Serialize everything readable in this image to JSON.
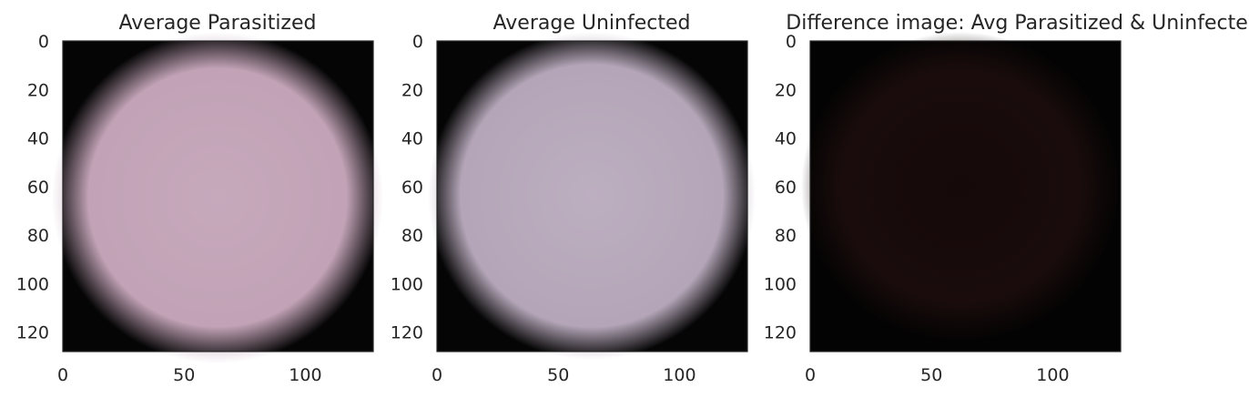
{
  "figure": {
    "panels": [
      {
        "title": "Average Parasitized",
        "image": "average-parasitized-cell",
        "colors": {
          "background": "#050505",
          "fill": "#c1a2b6",
          "fill_center": "#c7a9bc"
        },
        "xticks": [
          "0",
          "50",
          "100"
        ],
        "yticks": [
          "0",
          "20",
          "40",
          "60",
          "80",
          "100",
          "120"
        ]
      },
      {
        "title": "Average Uninfected",
        "image": "average-uninfected-cell",
        "colors": {
          "background": "#050505",
          "fill": "#b4a6b8",
          "fill_center": "#bcafc0"
        },
        "xticks": [
          "0",
          "50",
          "100"
        ],
        "yticks": [
          "0",
          "20",
          "40",
          "60",
          "80",
          "100",
          "120"
        ]
      },
      {
        "title": "Difference image: Avg Parasitized & Uninfected",
        "image": "difference-image",
        "colors": {
          "background": "#040303",
          "fill": "#1a0c0c",
          "fill_center": "#150909"
        },
        "xticks": [
          "0",
          "50",
          "100"
        ],
        "yticks": [
          "0",
          "20",
          "40",
          "60",
          "80",
          "100",
          "120"
        ]
      }
    ],
    "axis_range": {
      "x": [
        0,
        128
      ],
      "y": [
        0,
        128
      ]
    }
  }
}
